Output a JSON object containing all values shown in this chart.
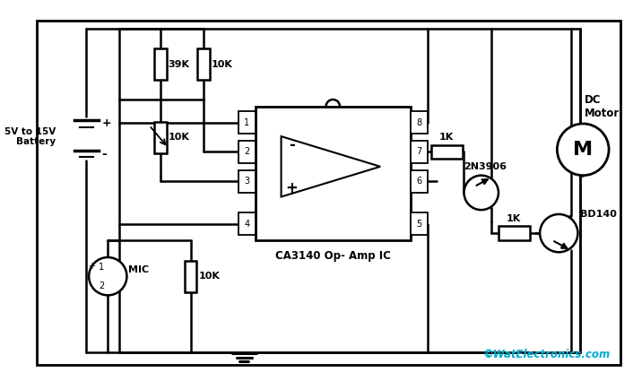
{
  "background_color": "#ffffff",
  "border_color": "#000000",
  "watermark": "©WatElectronics.com",
  "watermark_color": "#00aacc",
  "component_labels": {
    "resistor_39k": "39K",
    "resistor_10k_top": "10K",
    "resistor_10k_mid": "10K",
    "resistor_10k_bot": "10K",
    "resistor_1k_bd140": "1K",
    "resistor_1k_2n3906": "1K",
    "ic_label": "CA3140 Op- Amp IC",
    "transistor_pnp": "2N3906",
    "transistor_npn": "BD140",
    "mic_label": "MIC",
    "motor_label": "DC\nMotor",
    "battery_label": "5V to 15V\nBattery"
  }
}
